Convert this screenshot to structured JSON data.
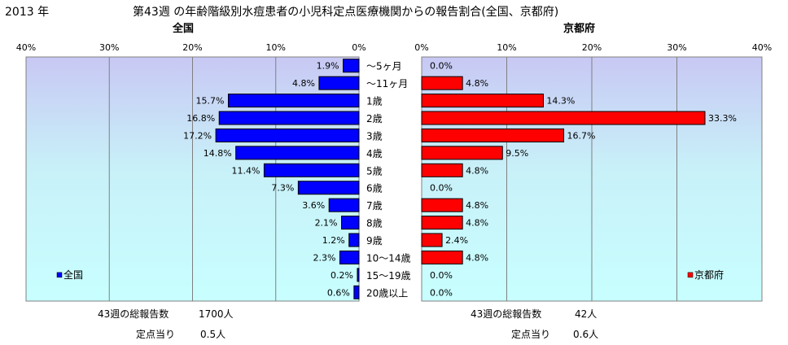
{
  "header": {
    "year": "2013 年",
    "title": "第43週 の年齢階級別水痘患者の小児科定点医療機関からの報告割合(全国、京都府)"
  },
  "chart_data": {
    "type": "bar",
    "orientation": "horizontal-butterfly",
    "categories": [
      "～5ヶ月",
      "～11ヶ月",
      "1歳",
      "2歳",
      "3歳",
      "4歳",
      "5歳",
      "6歳",
      "7歳",
      "8歳",
      "9歳",
      "10～14歳",
      "15～19歳",
      "20歳以上"
    ],
    "xlim": [
      0,
      40
    ],
    "ticks": [
      "0%",
      "10%",
      "20%",
      "30%",
      "40%"
    ],
    "legend_position": "bottom-inside",
    "series": [
      {
        "name": "全国",
        "panel_label": "全国",
        "color": "#0000ff",
        "values": [
          1.9,
          4.8,
          15.7,
          16.8,
          17.2,
          14.8,
          11.4,
          7.3,
          3.6,
          2.1,
          1.2,
          2.3,
          0.2,
          0.6
        ],
        "labels": [
          "1.9%",
          "4.8%",
          "15.7%",
          "16.8%",
          "17.2%",
          "14.8%",
          "11.4%",
          "7.3%",
          "3.6%",
          "2.1%",
          "1.2%",
          "2.3%",
          "0.2%",
          "0.6%"
        ]
      },
      {
        "name": "京都府",
        "panel_label": "京都府",
        "color": "#ff0000",
        "values": [
          0.0,
          4.8,
          14.3,
          33.3,
          16.7,
          9.5,
          4.8,
          0.0,
          4.8,
          4.8,
          2.4,
          4.8,
          0.0,
          0.0
        ],
        "labels": [
          "0.0%",
          "4.8%",
          "14.3%",
          "33.3%",
          "16.7%",
          "9.5%",
          "4.8%",
          "0.0%",
          "4.8%",
          "4.8%",
          "2.4%",
          "4.8%",
          "0.0%",
          "0.0%"
        ]
      }
    ]
  },
  "summary": {
    "national": {
      "total_label": "43週の総報告数",
      "total_value": "1700人",
      "per_label": "定点当り",
      "per_value": "0.5人"
    },
    "kyoto": {
      "total_label": "43週の総報告数",
      "total_value": "42人",
      "per_label": "定点当り",
      "per_value": "0.6人"
    }
  }
}
